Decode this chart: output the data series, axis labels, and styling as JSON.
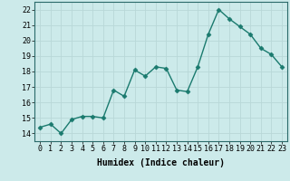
{
  "xlabel": "Humidex (Indice chaleur)",
  "x_values": [
    0,
    1,
    2,
    3,
    4,
    5,
    6,
    7,
    8,
    9,
    10,
    11,
    12,
    13,
    14,
    15,
    16,
    17,
    18,
    19,
    20,
    21,
    22,
    23
  ],
  "y_values": [
    14.4,
    14.6,
    14.0,
    14.9,
    15.1,
    15.1,
    15.0,
    16.8,
    16.4,
    18.1,
    17.7,
    18.3,
    18.2,
    16.8,
    16.7,
    18.3,
    20.4,
    22.0,
    21.4,
    20.9,
    20.4,
    19.5,
    19.1,
    18.3
  ],
  "line_color": "#1a7a6e",
  "marker": "D",
  "marker_size": 2.5,
  "linewidth": 1.0,
  "ylim": [
    13.5,
    22.5
  ],
  "yticks": [
    14,
    15,
    16,
    17,
    18,
    19,
    20,
    21,
    22
  ],
  "background_color": "#cceaea",
  "grid_color": "#b8d8d8",
  "xlabel_fontsize": 7,
  "tick_fontsize": 6
}
